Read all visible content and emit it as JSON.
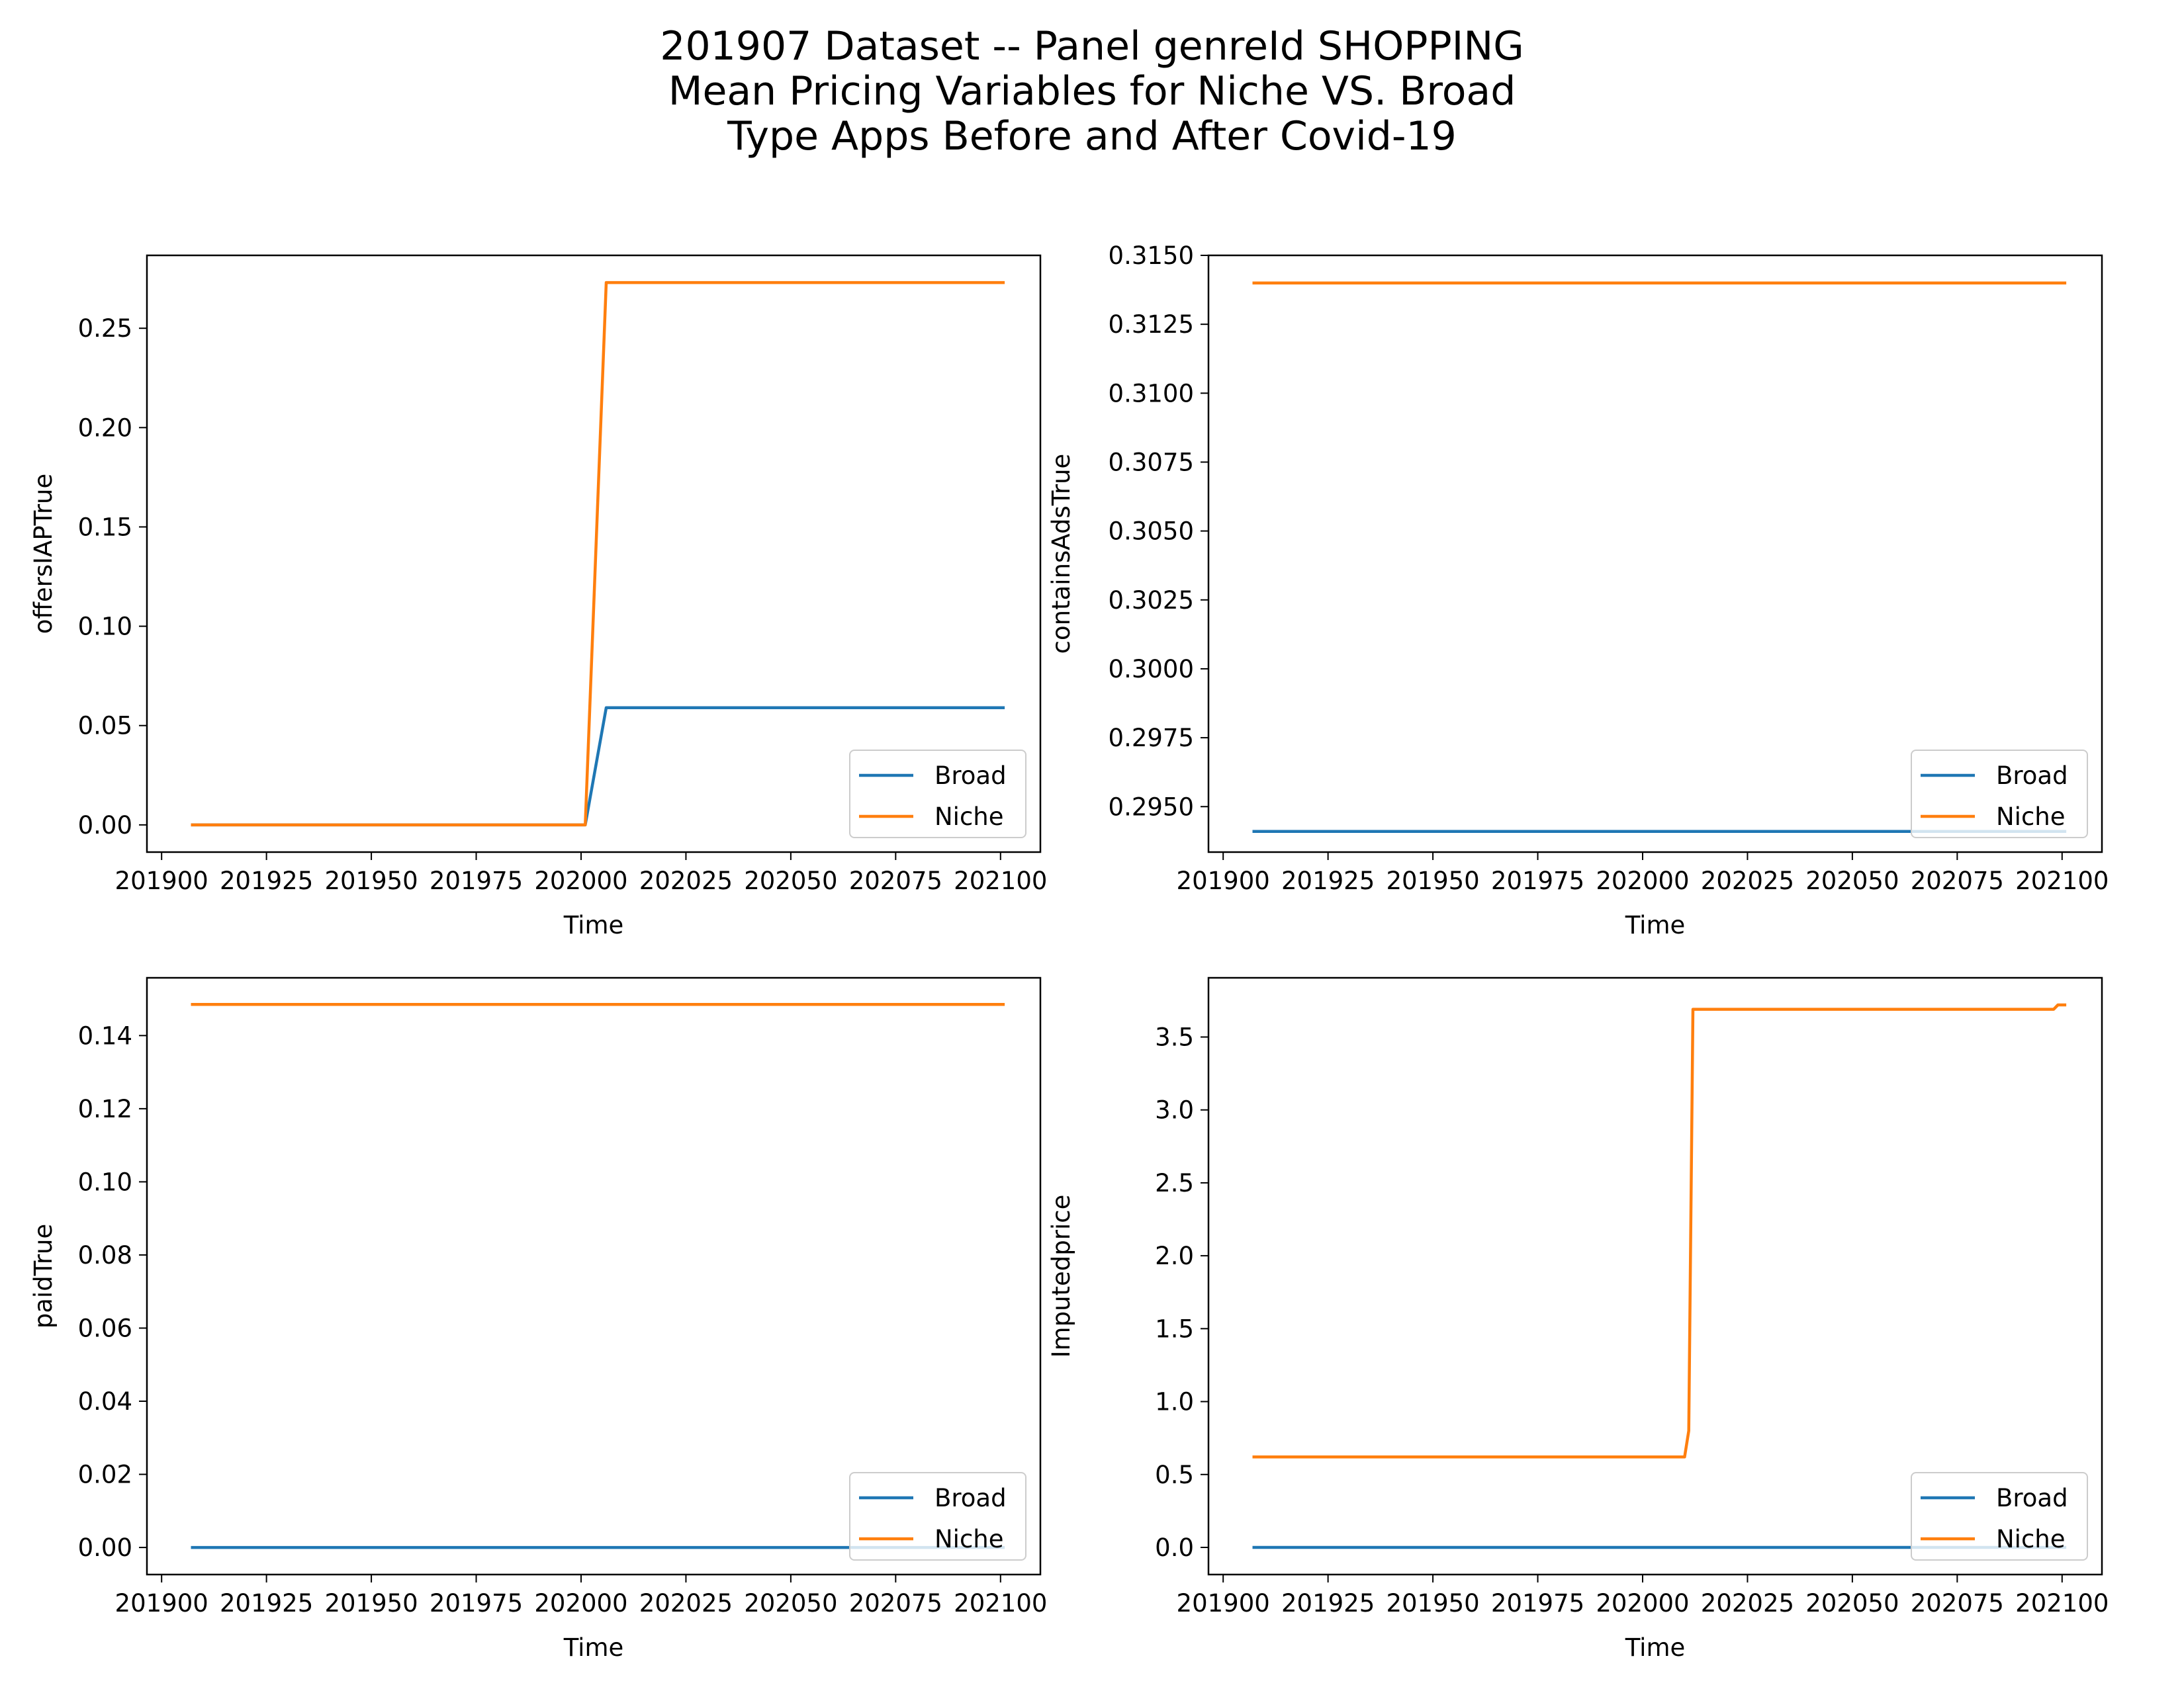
{
  "figure": {
    "title_lines": [
      "201907 Dataset -- Panel genreId SHOPPING",
      "Mean Pricing Variables for Niche VS. Broad",
      "Type Apps Before and After Covid-19"
    ]
  },
  "colors": {
    "Broad": "#1f77b4",
    "Niche": "#ff7f0e"
  },
  "chart_data": [
    {
      "type": "line",
      "xlabel": "Time",
      "ylabel": "offersIAPTrue",
      "xlim": [
        201896.5,
        202109.5
      ],
      "xticks": [
        201900,
        201925,
        201950,
        201975,
        202000,
        202025,
        202050,
        202075,
        202100
      ],
      "ylim": [
        -0.0137,
        0.2867
      ],
      "yticks": [
        0.0,
        0.05,
        0.1,
        0.15,
        0.2,
        0.25
      ],
      "ytick_decimals": 2,
      "legend": "lower-right",
      "grid": false,
      "series": [
        {
          "name": "Broad",
          "x": [
            201907,
            202001,
            202006,
            202101
          ],
          "y": [
            0.0,
            0.0,
            0.059,
            0.059
          ]
        },
        {
          "name": "Niche",
          "x": [
            201907,
            202001,
            202006,
            202101
          ],
          "y": [
            0.0,
            0.0,
            0.273,
            0.273
          ]
        }
      ]
    },
    {
      "type": "line",
      "xlabel": "Time",
      "ylabel": "containsAdsTrue",
      "xlim": [
        201896.5,
        202109.5
      ],
      "xticks": [
        201900,
        201925,
        201950,
        201975,
        202000,
        202025,
        202050,
        202075,
        202100
      ],
      "ylim": [
        0.29335,
        0.315
      ],
      "yticks": [
        0.295,
        0.2975,
        0.3,
        0.3025,
        0.305,
        0.3075,
        0.31,
        0.3125,
        0.315
      ],
      "ytick_decimals": 4,
      "legend": "lower-right",
      "grid": false,
      "series": [
        {
          "name": "Broad",
          "x": [
            201907,
            202101
          ],
          "y": [
            0.2941,
            0.2941
          ]
        },
        {
          "name": "Niche",
          "x": [
            201907,
            202101
          ],
          "y": [
            0.314,
            0.314
          ]
        }
      ]
    },
    {
      "type": "line",
      "xlabel": "Time",
      "ylabel": "paidTrue",
      "xlim": [
        201896.5,
        202109.5
      ],
      "xticks": [
        201900,
        201925,
        201950,
        201975,
        202000,
        202025,
        202050,
        202075,
        202100
      ],
      "ylim": [
        -0.0074,
        0.1558
      ],
      "yticks": [
        0.0,
        0.02,
        0.04,
        0.06,
        0.08,
        0.1,
        0.12,
        0.14
      ],
      "ytick_decimals": 2,
      "legend": "lower-right",
      "grid": false,
      "series": [
        {
          "name": "Broad",
          "x": [
            201907,
            202101
          ],
          "y": [
            0.0,
            0.0
          ]
        },
        {
          "name": "Niche",
          "x": [
            201907,
            202101
          ],
          "y": [
            0.1485,
            0.1485
          ]
        }
      ]
    },
    {
      "type": "line",
      "xlabel": "Time",
      "ylabel": "Imputedprice",
      "xlim": [
        201896.5,
        202109.5
      ],
      "xticks": [
        201900,
        201925,
        201950,
        201975,
        202000,
        202025,
        202050,
        202075,
        202100
      ],
      "ylim": [
        -0.186,
        3.906
      ],
      "yticks": [
        0.0,
        0.5,
        1.0,
        1.5,
        2.0,
        2.5,
        3.0,
        3.5
      ],
      "ytick_decimals": 1,
      "legend": "lower-right",
      "grid": false,
      "series": [
        {
          "name": "Broad",
          "x": [
            201907,
            202101
          ],
          "y": [
            0.0,
            0.0
          ]
        },
        {
          "name": "Niche",
          "x": [
            201907,
            202010,
            202011,
            202012,
            202098,
            202099,
            202101
          ],
          "y": [
            0.62,
            0.62,
            0.8,
            3.69,
            3.69,
            3.72,
            3.72
          ]
        }
      ]
    }
  ]
}
